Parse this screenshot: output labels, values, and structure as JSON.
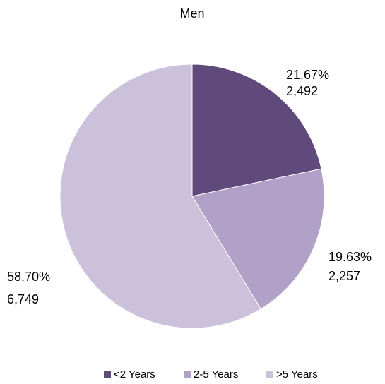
{
  "chart_data": {
    "type": "pie",
    "title": "Men",
    "categories": [
      "<2 Years",
      "2-5 Years",
      ">5 Years"
    ],
    "values": [
      21.67,
      19.63,
      58.7
    ],
    "value_labels": [
      "21.67%",
      "19.63%",
      "58.70%"
    ],
    "counts": [
      2492,
      2257,
      6749
    ],
    "count_labels": [
      "2,492",
      "2,257",
      "6,749"
    ],
    "colors": [
      "#604a7b",
      "#b1a0c7",
      "#ccc1da"
    ],
    "legend": "bottom"
  }
}
